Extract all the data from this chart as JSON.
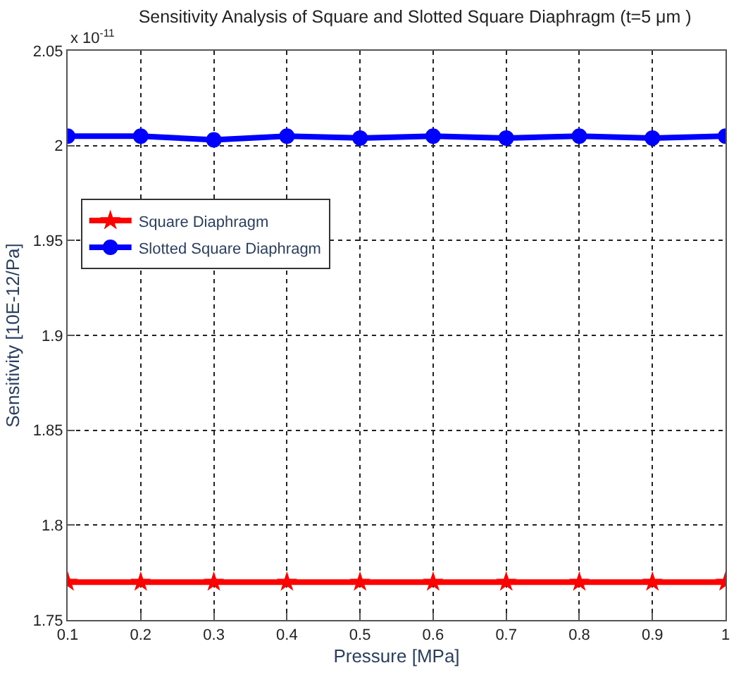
{
  "chart_data": {
    "type": "line",
    "title": "Sensitivity Analysis of Square and Slotted Square Diaphragm (t=5 μm )",
    "xlabel": "Pressure [MPa]",
    "ylabel": "Sensitivity [10E-12/Pa]",
    "annotations": [
      "x 10$^{-11}$"
    ],
    "x": [
      0.1,
      0.2,
      0.3,
      0.4,
      0.5,
      0.6,
      0.7,
      0.8,
      0.9,
      1
    ],
    "series": [
      {
        "name": "Square Diaphragm",
        "color": "#ff0000",
        "marker": "star",
        "values": [
          1.77,
          1.77,
          1.77,
          1.77,
          1.77,
          1.77,
          1.77,
          1.77,
          1.77,
          1.77
        ]
      },
      {
        "name": "Slotted Square Diaphragm",
        "color": "#0000ff",
        "marker": "circle",
        "values": [
          2.005,
          2.005,
          2.003,
          2.005,
          2.004,
          2.005,
          2.004,
          2.005,
          2.004,
          2.005
        ]
      }
    ],
    "xlim": [
      0.1,
      1
    ],
    "xticks": [
      0.1,
      0.2,
      0.3,
      0.4,
      0.5,
      0.6,
      0.7,
      0.8,
      0.9,
      1
    ],
    "ylim": [
      1.75,
      2.05
    ],
    "yticks": [
      1.75,
      1.8,
      1.85,
      1.9,
      1.95,
      2,
      2.05
    ],
    "grid": true,
    "legend": "top left",
    "line_style": "solid"
  }
}
